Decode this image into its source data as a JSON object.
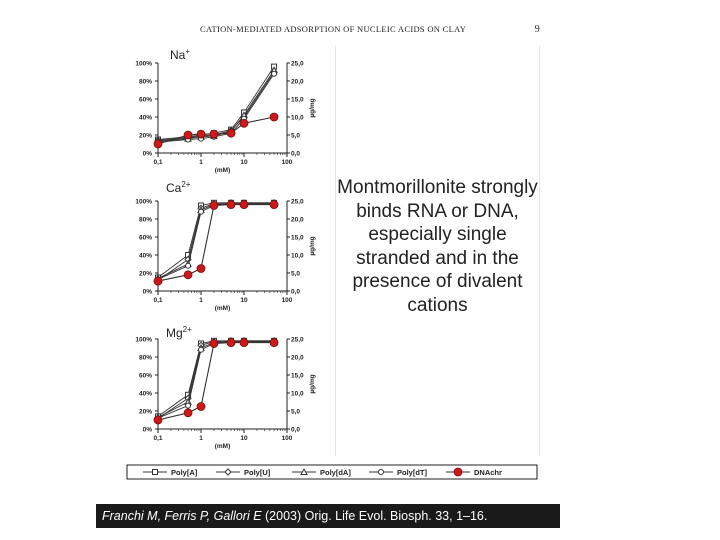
{
  "header": {
    "title": "CATION-MEDIATED ADSORPTION OF NUCLEIC ACIDS ON CLAY",
    "page_number": "9"
  },
  "caption": "Montmorillonite strongly binds RNA or DNA, especially single stranded and in the presence of divalent cations",
  "citation": {
    "authors": "Franchi M, Ferris P, Gallori E",
    "rest": " (2003) Orig. Life Evol. Biosph. 33, 1–16."
  },
  "legend": {
    "entries": [
      {
        "label": "Poly[A]",
        "marker": "square"
      },
      {
        "label": "Poly[U]",
        "marker": "diamond"
      },
      {
        "label": "Poly[dA]",
        "marker": "triangle"
      },
      {
        "label": "Poly[dT]",
        "marker": "circle"
      },
      {
        "label": "DNAchr",
        "marker": "filled-circle",
        "color": "#cc1a1a"
      }
    ]
  },
  "chart_data": [
    {
      "type": "line",
      "label": "Na+",
      "x_scale": "log",
      "x": [
        0.1,
        0.5,
        1,
        2,
        5,
        10,
        50
      ],
      "xticks": [
        "0,1",
        "1",
        "10",
        "100"
      ],
      "xlabel": "(mM)",
      "ylim_left": [
        0,
        100
      ],
      "yticks_left": [
        "0%",
        "20%",
        "40%",
        "60%",
        "80%",
        "100%"
      ],
      "ylim_right": [
        0,
        25
      ],
      "yticks_right": [
        "0,0",
        "5,0",
        "10,0",
        "15,0",
        "20,0",
        "25,0"
      ],
      "ylabel_right": "µg/mg",
      "series": [
        {
          "name": "Poly[A]",
          "values": [
            15,
            18,
            20,
            22,
            26,
            45,
            96
          ]
        },
        {
          "name": "Poly[U]",
          "values": [
            14,
            17,
            19,
            20,
            25,
            40,
            90
          ]
        },
        {
          "name": "Poly[dA]",
          "values": [
            13,
            16,
            18,
            19,
            24,
            42,
            92
          ]
        },
        {
          "name": "Poly[dT]",
          "values": [
            12,
            15,
            16,
            18,
            22,
            38,
            88
          ]
        },
        {
          "name": "DNAchr",
          "values": [
            10,
            20,
            21,
            21,
            22,
            33,
            40
          ]
        }
      ]
    },
    {
      "type": "line",
      "label": "Ca2+",
      "x_scale": "log",
      "x": [
        0.1,
        0.5,
        1,
        2,
        5,
        10,
        50
      ],
      "xticks": [
        "0,1",
        "1",
        "10",
        "100"
      ],
      "xlabel": "(mM)",
      "ylim_left": [
        0,
        100
      ],
      "yticks_left": [
        "0%",
        "20%",
        "40%",
        "60%",
        "80%",
        "100%"
      ],
      "ylim_right": [
        0,
        25
      ],
      "yticks_right": [
        "0,0",
        "5,0",
        "10,0",
        "15,0",
        "20,0",
        "25,0"
      ],
      "ylabel_right": "µg/mg",
      "series": [
        {
          "name": "Poly[A]",
          "values": [
            15,
            40,
            95,
            98,
            98,
            98,
            98
          ]
        },
        {
          "name": "Poly[U]",
          "values": [
            12,
            35,
            92,
            97,
            98,
            98,
            98
          ]
        },
        {
          "name": "Poly[dA]",
          "values": [
            14,
            30,
            90,
            96,
            97,
            97,
            97
          ]
        },
        {
          "name": "Poly[dT]",
          "values": [
            13,
            28,
            88,
            95,
            97,
            97,
            97
          ]
        },
        {
          "name": "DNAchr",
          "values": [
            11,
            18,
            25,
            95,
            96,
            96,
            96
          ]
        }
      ]
    },
    {
      "type": "line",
      "label": "Mg2+",
      "x_scale": "log",
      "x": [
        0.1,
        0.5,
        1,
        2,
        5,
        10,
        50
      ],
      "xticks": [
        "0,1",
        "1",
        "10",
        "100"
      ],
      "xlabel": "(mM)",
      "ylim_left": [
        0,
        100
      ],
      "yticks_left": [
        "0%",
        "20%",
        "40%",
        "60%",
        "80%",
        "100%"
      ],
      "ylim_right": [
        0,
        25
      ],
      "yticks_right": [
        "0,0",
        "5,0",
        "10,0",
        "15,0",
        "20,0",
        "25,0"
      ],
      "ylabel_right": "µg/mg",
      "series": [
        {
          "name": "Poly[A]",
          "values": [
            14,
            38,
            95,
            98,
            98,
            98,
            98
          ]
        },
        {
          "name": "Poly[U]",
          "values": [
            12,
            34,
            93,
            97,
            98,
            98,
            98
          ]
        },
        {
          "name": "Poly[dA]",
          "values": [
            13,
            30,
            90,
            96,
            97,
            97,
            97
          ]
        },
        {
          "name": "Poly[dT]",
          "values": [
            12,
            26,
            88,
            95,
            97,
            97,
            97
          ]
        },
        {
          "name": "DNAchr",
          "values": [
            10,
            18,
            25,
            95,
            96,
            96,
            96
          ]
        }
      ]
    }
  ]
}
